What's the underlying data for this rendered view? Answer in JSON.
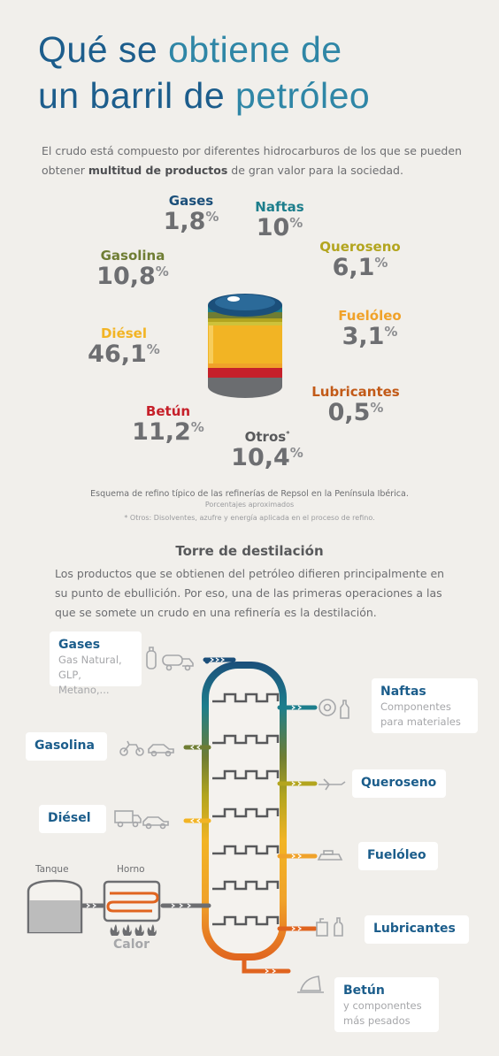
{
  "title": {
    "line1_a": "Qué se ",
    "line1_b": "obtiene de",
    "line2_a": "un barril de ",
    "line2_b": "petróleo"
  },
  "intro": {
    "text_a": "El crudo está compuesto por diferentes hidrocarburos de los que se pueden obtener ",
    "text_bold": "multitud de productos",
    "text_b": " de gran valor para la sociedad."
  },
  "products": [
    {
      "name": "Gases",
      "value": "1,8",
      "color": "#1b4f7a"
    },
    {
      "name": "Naftas",
      "value": "10",
      "color": "#1d7e8c"
    },
    {
      "name": "Gasolina",
      "value": "10,8",
      "color": "#6f7d33"
    },
    {
      "name": "Queroseno",
      "value": "6,1",
      "color": "#b3a51f"
    },
    {
      "name": "Diésel",
      "value": "46,1",
      "color": "#f2b424"
    },
    {
      "name": "Fuelóleo",
      "value": "3,1",
      "color": "#f0a22a"
    },
    {
      "name": "Lubricantes",
      "value": "0,5",
      "color": "#c25a18"
    },
    {
      "name": "Betún",
      "value": "11,2",
      "color": "#c6202a"
    },
    {
      "name": "Otros",
      "value": "10,4",
      "color": "#58595b",
      "sup": "*"
    }
  ],
  "percent_symbol": "%",
  "notes": {
    "scheme": "Esquema de refino típico de las refinerías de Repsol en la Península Ibérica.",
    "approx": "Porcentajes aproximados",
    "others": "* Otros: Disolventes, azufre y energía aplicada en el proceso de refino."
  },
  "tower": {
    "title": "Torre de destilación",
    "desc": "Los productos que se obtienen del petróleo difieren principalmente en su punto de ebullición. Por eso, una de las primeras operaciones a las que se somete un crudo en una refinería es la destilación."
  },
  "outputs": {
    "gases": {
      "title": "Gases",
      "sub1": "Gas Natural,",
      "sub2": "GLP, Metano,..."
    },
    "naftas": {
      "title": "Naftas",
      "sub1": "Componentes",
      "sub2": "para materiales"
    },
    "gasolina": {
      "title": "Gasolina"
    },
    "queroseno": {
      "title": "Queroseno"
    },
    "diesel": {
      "title": "Diésel"
    },
    "fueloleo": {
      "title": "Fuelóleo"
    },
    "lubricantes": {
      "title": "Lubricantes"
    },
    "betun": {
      "title": "Betún",
      "sub1": "y componentes",
      "sub2": "más pesados"
    }
  },
  "process": {
    "tank": "Tanque",
    "furnace": "Horno",
    "heat": "Calor"
  },
  "colors": {
    "title_dark": "#1c5d8c",
    "title_light": "#2f86a6",
    "card_title": "#1b5d8b",
    "background": "#f1efeb",
    "tower_outline": "#e0641f"
  },
  "icons": [
    "gas-bottle-icon",
    "tanker-truck-icon",
    "tire-icon",
    "bottle-icon",
    "motorcycle-icon",
    "car-icon",
    "airplane-icon",
    "truck-icon",
    "ship-icon",
    "oil-can-icon",
    "lubricant-bottle-icon",
    "road-roller-icon",
    "flame-icon"
  ]
}
